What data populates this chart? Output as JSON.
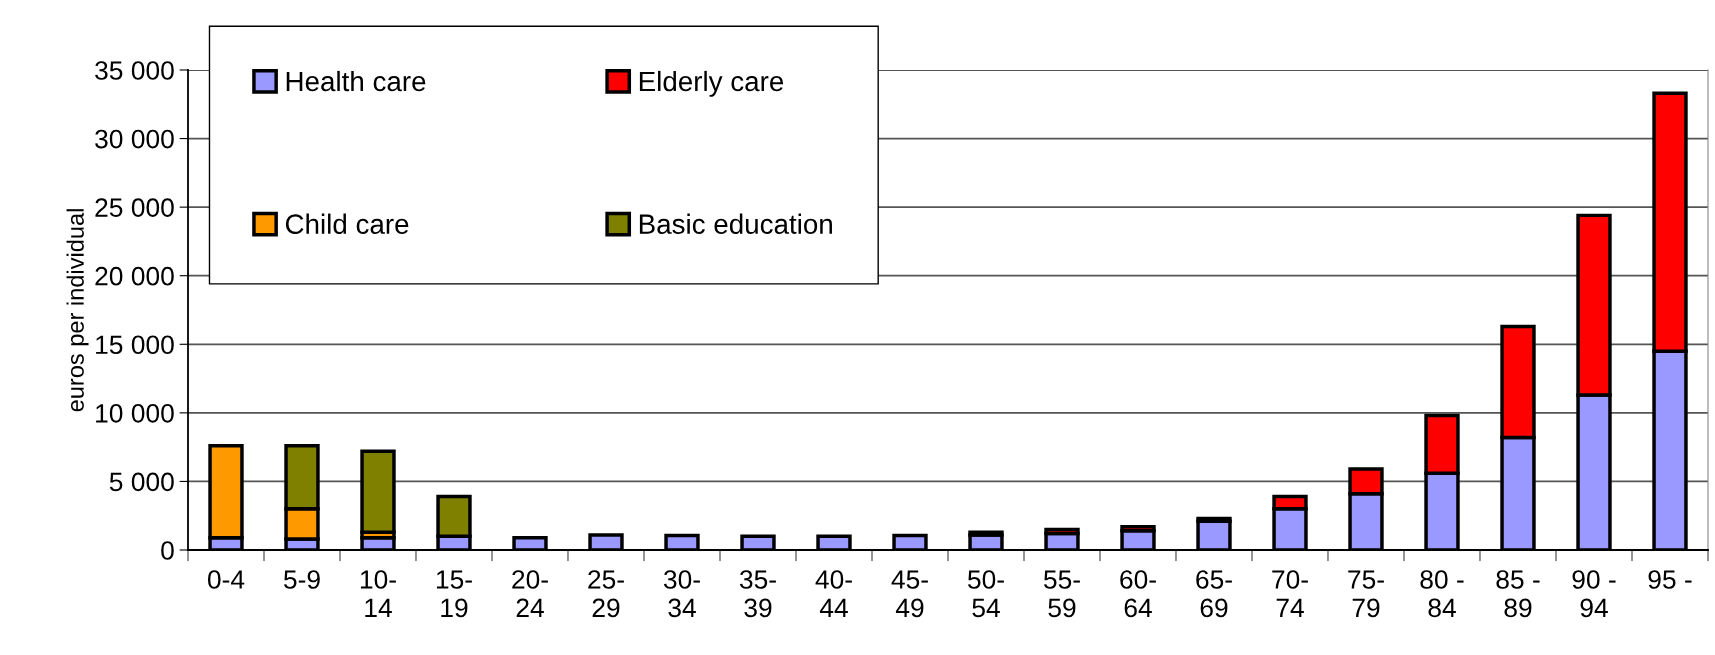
{
  "chart_data": {
    "type": "bar",
    "stacked": true,
    "ylabel": "euros per individual",
    "categories": [
      "0-4",
      "5-9",
      "10-\n14",
      "15-\n19",
      "20-\n24",
      "25-\n29",
      "30-\n34",
      "35-\n39",
      "40-\n44",
      "45-\n49",
      "50-\n54",
      "55-\n59",
      "60-\n64",
      "65-\n69",
      "70-\n74",
      "75-\n79",
      "80 -\n84",
      "85 -\n89",
      "90 -\n94",
      "95 -"
    ],
    "series": [
      {
        "name": "Health care",
        "color": "#9999ff",
        "values": [
          900,
          800,
          900,
          1000,
          900,
          1100,
          1050,
          1000,
          1000,
          1050,
          1100,
          1200,
          1400,
          2100,
          3000,
          4100,
          5600,
          8200,
          11300,
          14500
        ]
      },
      {
        "name": "Child care",
        "color": "#ff9900",
        "values": [
          6700,
          2200,
          400,
          null,
          null,
          null,
          null,
          null,
          null,
          null,
          null,
          null,
          null,
          null,
          null,
          null,
          null,
          null,
          null,
          null
        ]
      },
      {
        "name": "Basic education",
        "color": "#808000",
        "values": [
          null,
          4600,
          5900,
          2900,
          null,
          null,
          null,
          null,
          null,
          null,
          null,
          null,
          null,
          null,
          null,
          null,
          null,
          null,
          null,
          null
        ]
      },
      {
        "name": "Elderly care",
        "color": "#ff0000",
        "values": [
          null,
          null,
          null,
          null,
          null,
          null,
          null,
          null,
          null,
          null,
          200,
          300,
          300,
          200,
          900,
          1800,
          4200,
          8100,
          13100,
          18800
        ]
      }
    ],
    "ylim": [
      0,
      35000
    ],
    "yticks": [
      0,
      {
        "value": 5000,
        "label": "5 000"
      },
      {
        "value": 10000,
        "label": "10 000"
      },
      {
        "value": 15000,
        "label": "15 000"
      },
      {
        "value": 20000,
        "label": "20 000"
      },
      {
        "value": 25000,
        "label": "25 000"
      },
      {
        "value": 30000,
        "label": "30 000"
      },
      {
        "value": 35000,
        "label": "35 000"
      }
    ],
    "grid": "y",
    "legend": "top left"
  }
}
